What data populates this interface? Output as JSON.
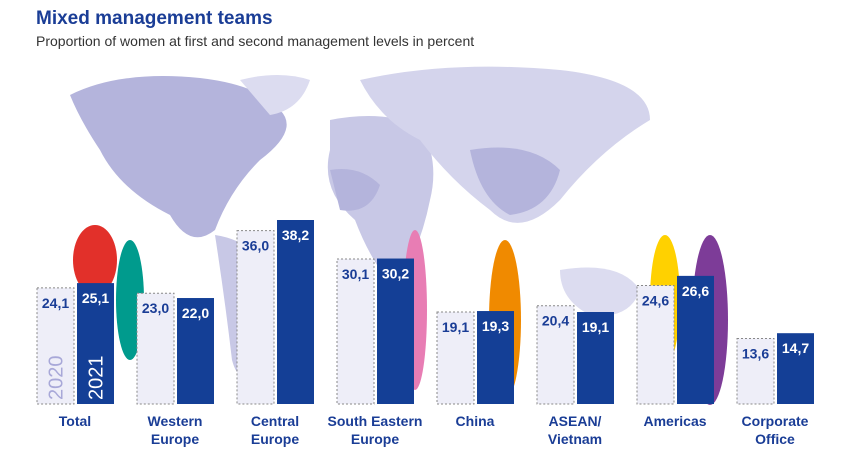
{
  "chart_data": {
    "type": "bar",
    "title": "Mixed management teams",
    "subtitle": "Proportion of women at first and second management levels in percent",
    "categories": [
      "Total",
      "Western Europe",
      "Central Europe",
      "South Eastern Europe",
      "China",
      "ASEAN/ Vietnam",
      "Americas",
      "Corporate Office"
    ],
    "category_lines": [
      [
        "Total"
      ],
      [
        "Western",
        "Europe"
      ],
      [
        "Central",
        "Europe"
      ],
      [
        "South Eastern",
        "Europe"
      ],
      [
        "China"
      ],
      [
        "ASEAN/",
        "Vietnam"
      ],
      [
        "Americas"
      ],
      [
        "Corporate",
        "Office"
      ]
    ],
    "series": [
      {
        "name": "2020",
        "values": [
          24.1,
          23.0,
          36.0,
          30.1,
          19.1,
          20.4,
          24.6,
          13.6
        ],
        "labels": [
          "24,1",
          "23,0",
          "36,0",
          "30,1",
          "19,1",
          "20,4",
          "24,6",
          "13,6"
        ],
        "color": "#eeeef8"
      },
      {
        "name": "2021",
        "values": [
          25.1,
          22.0,
          38.2,
          30.2,
          19.3,
          19.1,
          26.6,
          14.7
        ],
        "labels": [
          "25,1",
          "22,0",
          "38,2",
          "30,2",
          "19,3",
          "19,1",
          "26,6",
          "14,7"
        ],
        "color": "#143f96"
      }
    ],
    "ylim": [
      0,
      40
    ],
    "xlabel": "",
    "ylabel": "",
    "grid": false
  }
}
